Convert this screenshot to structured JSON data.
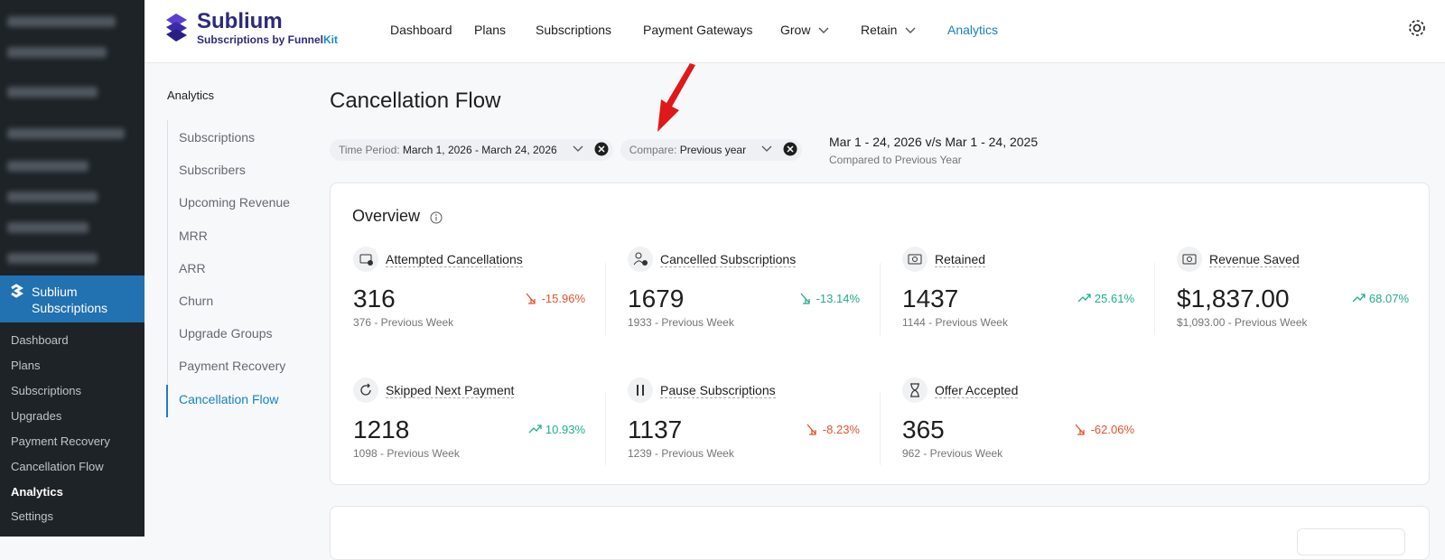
{
  "sidebar": {
    "brand": "Sublium Subscriptions",
    "menu": [
      "Dashboard",
      "Plans",
      "Subscriptions",
      "Upgrades",
      "Payment Recovery",
      "Cancellation Flow",
      "Analytics",
      "Settings"
    ],
    "active": 6
  },
  "header": {
    "logo_title": "Sublium",
    "logo_subtitle": "Subscriptions by Funnel",
    "logo_subtitle_accent": "Kit",
    "nav": [
      "Dashboard",
      "Plans",
      "Subscriptions",
      "Payment Gateways",
      "Grow",
      "Retain",
      "Analytics"
    ],
    "dropdowns": [
      4,
      5
    ],
    "active": 6
  },
  "subnav": {
    "heading": "Analytics",
    "items": [
      "Subscriptions",
      "Subscribers",
      "Upcoming Revenue",
      "MRR",
      "ARR",
      "Churn",
      "Upgrade Groups",
      "Payment Recovery",
      "Cancellation Flow"
    ],
    "active": 8
  },
  "page": {
    "title": "Cancellation Flow",
    "filters": [
      {
        "label": "Time Period:",
        "value": "March 1, 2026 - March 24, 2026"
      },
      {
        "label": "Compare:",
        "value": "Previous year"
      }
    ],
    "comparison": {
      "range": "Mar 1 - 24, 2026 v/s Mar 1 - 24, 2025",
      "note": "Compared to Previous Year"
    }
  },
  "overview": {
    "title": "Overview",
    "metrics": [
      {
        "label": "Attempted Cancellations",
        "value": "316",
        "change": "-15.96%",
        "trend": "down",
        "color": "#e2522f",
        "previous": "376 - Previous Week"
      },
      {
        "label": "Cancelled Subscriptions",
        "value": "1679",
        "change": "-13.14%",
        "trend": "down",
        "color": "#1fae8c",
        "previous": "1933 - Previous Week"
      },
      {
        "label": "Retained",
        "value": "1437",
        "change": "25.61%",
        "trend": "up",
        "color": "#1fae8c",
        "previous": "1144 - Previous Week"
      },
      {
        "label": "Revenue Saved",
        "value": "$1,837.00",
        "change": "68.07%",
        "trend": "up",
        "color": "#1fae8c",
        "previous": "$1,093.00 - Previous Week"
      },
      {
        "label": "Skipped Next Payment",
        "value": "1218",
        "change": "10.93%",
        "trend": "up",
        "color": "#1fae8c",
        "previous": "1098 - Previous Week"
      },
      {
        "label": "Pause Subscriptions",
        "value": "1137",
        "change": "-8.23%",
        "trend": "down",
        "color": "#e2522f",
        "previous": "1239 - Previous Week"
      },
      {
        "label": "Offer Accepted",
        "value": "365",
        "change": "-62.06%",
        "trend": "down",
        "color": "#e2522f",
        "previous": "962 - Previous Week"
      }
    ]
  }
}
